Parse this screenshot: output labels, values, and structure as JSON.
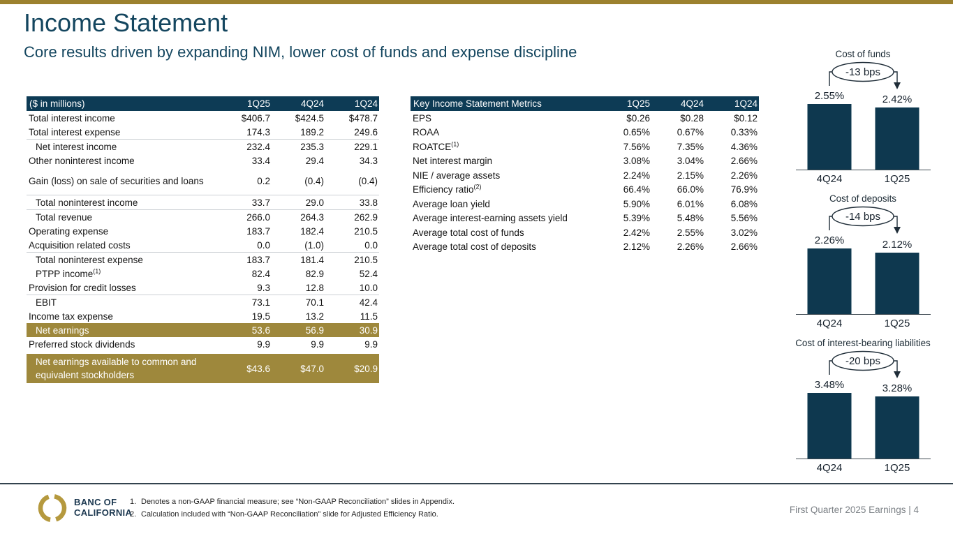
{
  "slide": {
    "title": "Income Statement",
    "subtitle": "Core results driven by expanding NIM, lower cost of funds and expense discipline",
    "colors": {
      "accent_gold": "#9c812e",
      "header_navy": "#0d3b55",
      "highlight_gold": "#9e883c",
      "title_navy": "#14465f",
      "bar_navy": "#0e384f"
    }
  },
  "income_table": {
    "header": {
      "label": "($ in millions)",
      "cols": [
        "1Q25",
        "4Q24",
        "1Q24"
      ]
    },
    "rows": [
      {
        "label": "Total interest income",
        "values": [
          "$406.7",
          "$424.5",
          "$478.7"
        ]
      },
      {
        "label": "Total interest expense",
        "values": [
          "174.3",
          "189.2",
          "249.6"
        ]
      },
      {
        "label": "Net interest income",
        "values": [
          "232.4",
          "235.3",
          "229.1"
        ],
        "indent": true,
        "topline": true
      },
      {
        "label": "Other noninterest income",
        "values": [
          "33.4",
          "29.4",
          "34.3"
        ]
      },
      {
        "label": "Gain (loss) on sale of securities and loans",
        "values": [
          "0.2",
          "(0.4)",
          "(0.4)"
        ],
        "tall": true
      },
      {
        "label": "Total noninterest income",
        "values": [
          "33.7",
          "29.0",
          "33.8"
        ],
        "indent": true,
        "topline": true
      },
      {
        "label": "Total revenue",
        "values": [
          "266.0",
          "264.3",
          "262.9"
        ],
        "indent": true,
        "topline": true
      },
      {
        "label": "Operating expense",
        "values": [
          "183.7",
          "182.4",
          "210.5"
        ]
      },
      {
        "label": "Acquisition related costs",
        "values": [
          "0.0",
          "(1.0)",
          "0.0"
        ]
      },
      {
        "label": "Total noninterest expense",
        "values": [
          "183.7",
          "181.4",
          "210.5"
        ],
        "indent": true,
        "topline": true
      },
      {
        "label": "PTPP income",
        "sup": "(1)",
        "values": [
          "82.4",
          "82.9",
          "52.4"
        ],
        "indent": true
      },
      {
        "label": "Provision for credit losses",
        "values": [
          "9.3",
          "12.8",
          "10.0"
        ]
      },
      {
        "label": "EBIT",
        "values": [
          "73.1",
          "70.1",
          "42.4"
        ],
        "indent": true,
        "topline": true
      },
      {
        "label": "Income tax expense",
        "values": [
          "19.5",
          "13.2",
          "11.5"
        ]
      },
      {
        "label": "Net earnings",
        "values": [
          "53.6",
          "56.9",
          "30.9"
        ],
        "indent": true,
        "highlight": true
      },
      {
        "label": "Preferred stock dividends",
        "values": [
          "9.9",
          "9.9",
          "9.9"
        ]
      },
      {
        "label": "Net earnings available to common and equivalent stockholders",
        "values": [
          "$43.6",
          "$47.0",
          "$20.9"
        ],
        "indent": true,
        "highlight": true,
        "tall2": true,
        "gap_before": true
      }
    ]
  },
  "metrics_table": {
    "header": {
      "label": "Key Income Statement Metrics",
      "cols": [
        "1Q25",
        "4Q24",
        "1Q24"
      ]
    },
    "rows": [
      {
        "label": "EPS",
        "values": [
          "$0.26",
          "$0.28",
          "$0.12"
        ]
      },
      {
        "label": "ROAA",
        "values": [
          "0.65%",
          "0.67%",
          "0.33%"
        ]
      },
      {
        "label": "ROATCE",
        "sup": "(1)",
        "values": [
          "7.56%",
          "7.35%",
          "4.36%"
        ]
      },
      {
        "label": "Net interest margin",
        "values": [
          "3.08%",
          "3.04%",
          "2.66%"
        ]
      },
      {
        "label": "NIE / average assets",
        "values": [
          "2.24%",
          "2.15%",
          "2.26%"
        ]
      },
      {
        "label": "Efficiency ratio",
        "sup": "(2)",
        "values": [
          "66.4%",
          "66.0%",
          "76.9%"
        ]
      },
      {
        "label": "Average loan yield",
        "values": [
          "5.90%",
          "6.01%",
          "6.08%"
        ]
      },
      {
        "label": "Average interest-earning assets yield",
        "values": [
          "5.39%",
          "5.48%",
          "5.56%"
        ]
      },
      {
        "label": "Average total cost of funds",
        "values": [
          "2.42%",
          "2.55%",
          "3.02%"
        ]
      },
      {
        "label": "Average total cost of deposits",
        "values": [
          "2.12%",
          "2.26%",
          "2.66%"
        ]
      }
    ]
  },
  "chart_data": [
    {
      "type": "bar",
      "title": "Cost of funds",
      "annotation": "-13 bps",
      "categories": [
        "4Q24",
        "1Q25"
      ],
      "values": [
        2.55,
        2.42
      ],
      "labels": [
        "2.55%",
        "2.42%"
      ],
      "bar_color": "#0e384f",
      "ylim": [
        0,
        2.55
      ],
      "grid": false,
      "legend": "none"
    },
    {
      "type": "bar",
      "title": "Cost of deposits",
      "annotation": "-14 bps",
      "categories": [
        "4Q24",
        "1Q25"
      ],
      "values": [
        2.26,
        2.12
      ],
      "labels": [
        "2.26%",
        "2.12%"
      ],
      "bar_color": "#0e384f",
      "ylim": [
        0,
        2.26
      ],
      "grid": false,
      "legend": "none"
    },
    {
      "type": "bar",
      "title": "Cost of interest-bearing liabilities",
      "annotation": "-20 bps",
      "categories": [
        "4Q24",
        "1Q25"
      ],
      "values": [
        3.48,
        3.28
      ],
      "labels": [
        "3.48%",
        "3.28%"
      ],
      "bar_color": "#0e384f",
      "ylim": [
        0,
        3.48
      ],
      "grid": false,
      "legend": "none"
    }
  ],
  "footer": {
    "logo_line1": "BANC OF",
    "logo_line2": "CALIFORNIA",
    "footnotes": [
      {
        "num": "1.",
        "text": "Denotes a non-GAAP financial measure; see “Non-GAAP Reconciliation” slides in Appendix."
      },
      {
        "num": "2.",
        "text": "Calculation included with “Non-GAAP Reconciliation” slide for Adjusted Efficiency Ratio."
      }
    ],
    "page_label": "First Quarter 2025 Earnings |",
    "page_number": "4"
  }
}
